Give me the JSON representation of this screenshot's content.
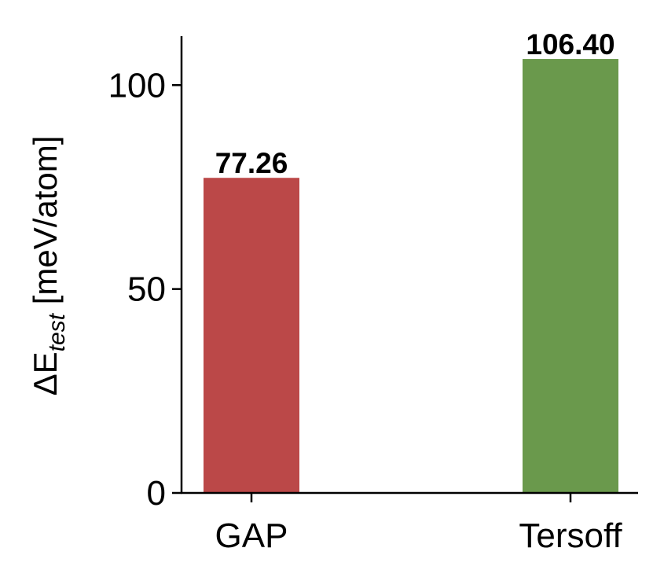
{
  "chart_data": {
    "type": "bar",
    "categories": [
      "GAP",
      "Tersoff"
    ],
    "values": [
      77.26,
      106.4
    ],
    "value_labels": [
      "77.26",
      "106.40"
    ],
    "colors": [
      "#bb4848",
      "#6a994c"
    ],
    "ylabel": {
      "prefix": "ΔE",
      "subscript": "test",
      "suffix": " [meV/atom]"
    },
    "ylim": [
      0,
      112
    ],
    "yticks": [
      0,
      50,
      100
    ],
    "ytick_labels": [
      "0",
      "50",
      "100"
    ],
    "grid": false
  }
}
